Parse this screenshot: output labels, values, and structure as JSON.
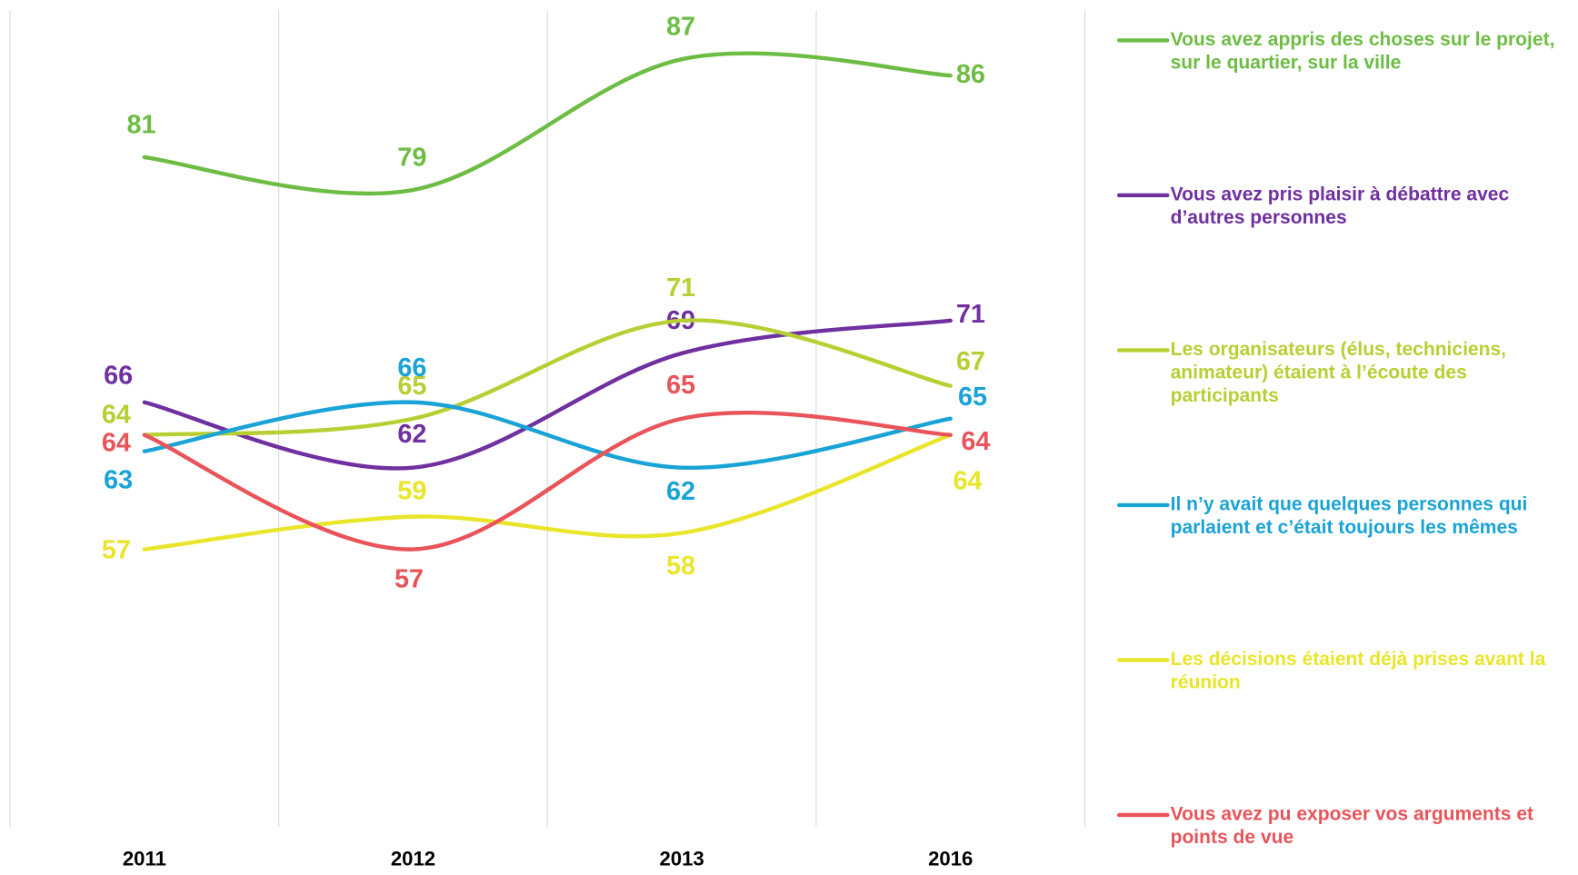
{
  "chart_data": {
    "type": "line",
    "categories": [
      "2011",
      "2012",
      "2013",
      "2016"
    ],
    "ylim": [
      40,
      90
    ],
    "smooth": true,
    "series": [
      {
        "name": "Vous avez appris des choses sur le projet, sur le quartier, sur la ville",
        "color": "#6dbd45",
        "values": [
          81,
          79,
          87,
          86
        ]
      },
      {
        "name": "Vous avez pris plaisir à débattre avec d’autres personnes",
        "color": "#7030a0",
        "values": [
          66,
          62,
          69,
          71
        ]
      },
      {
        "name": "Les organisateurs (élus, techniciens, animateur) étaient à l’écoute des participants",
        "color": "#b8cf34",
        "values": [
          64,
          65,
          71,
          67
        ]
      },
      {
        "name": "Il n’y avait que quelques personnes qui parlaient et c’était toujours les mêmes",
        "color": "#1aa3d6",
        "values": [
          63,
          66,
          62,
          65
        ]
      },
      {
        "name": "Les décisions étaient déjà prises avant la réunion",
        "color": "#e9e52a",
        "values": [
          57,
          59,
          58,
          64
        ]
      },
      {
        "name": "Vous avez pu exposer vos arguments et points de vue",
        "color": "#e9545a",
        "values": [
          64,
          57,
          65,
          64
        ]
      }
    ]
  }
}
